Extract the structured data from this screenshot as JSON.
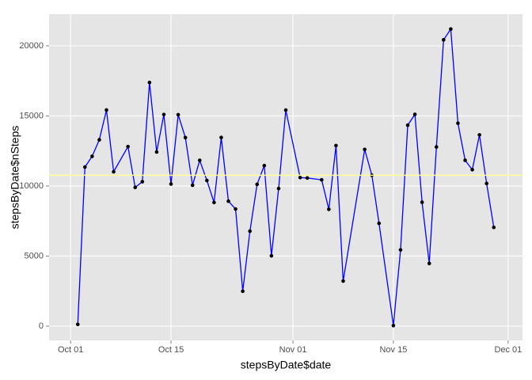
{
  "chart_data": {
    "type": "line",
    "x_label": "stepsByDate$date",
    "y_label": "stepsByDate$nSteps",
    "x": [
      "Oct 02",
      "Oct 03",
      "Oct 04",
      "Oct 05",
      "Oct 06",
      "Oct 07",
      "Oct 09",
      "Oct 10",
      "Oct 11",
      "Oct 12",
      "Oct 13",
      "Oct 14",
      "Oct 15",
      "Oct 16",
      "Oct 17",
      "Oct 18",
      "Oct 19",
      "Oct 20",
      "Oct 21",
      "Oct 22",
      "Oct 23",
      "Oct 24",
      "Oct 25",
      "Oct 26",
      "Oct 27",
      "Oct 28",
      "Oct 29",
      "Oct 30",
      "Oct 31",
      "Nov 02",
      "Nov 03",
      "Nov 05",
      "Nov 06",
      "Nov 07",
      "Nov 08",
      "Nov 11",
      "Nov 12",
      "Nov 13",
      "Nov 15",
      "Nov 16",
      "Nov 17",
      "Nov 18",
      "Nov 19",
      "Nov 20",
      "Nov 21",
      "Nov 22",
      "Nov 23",
      "Nov 24",
      "Nov 25",
      "Nov 26",
      "Nov 27",
      "Nov 28",
      "Nov 29"
    ],
    "series": [
      {
        "color": "#0000ff",
        "marker_color": "#000000",
        "values": [
          126,
          11352,
          12116,
          13294,
          15420,
          11015,
          12811,
          9900,
          10304,
          17382,
          12426,
          15098,
          10139,
          15084,
          13452,
          10056,
          11829,
          10395,
          8821,
          13460,
          8918,
          8355,
          2492,
          6778,
          10119,
          11458,
          5018,
          9819,
          15414,
          10600,
          10571,
          10439,
          8334,
          12883,
          3219,
          12608,
          10765,
          7336,
          41,
          5441,
          14339,
          15110,
          8841,
          4472,
          12787,
          20427,
          21194,
          14478,
          11834,
          11162,
          13646,
          10183,
          7047
        ]
      }
    ],
    "hline": {
      "value": 10766,
      "color": "#ffff99"
    },
    "xlim": [
      "Sep 28",
      "Dec 03"
    ],
    "xticks": [
      "Oct 01",
      "Oct 15",
      "Nov 01",
      "Nov 15",
      "Dec 01"
    ],
    "ylim": [
      -1017,
      22252
    ],
    "yticks": [
      0,
      5000,
      10000,
      15000,
      20000
    ],
    "grid": true
  }
}
